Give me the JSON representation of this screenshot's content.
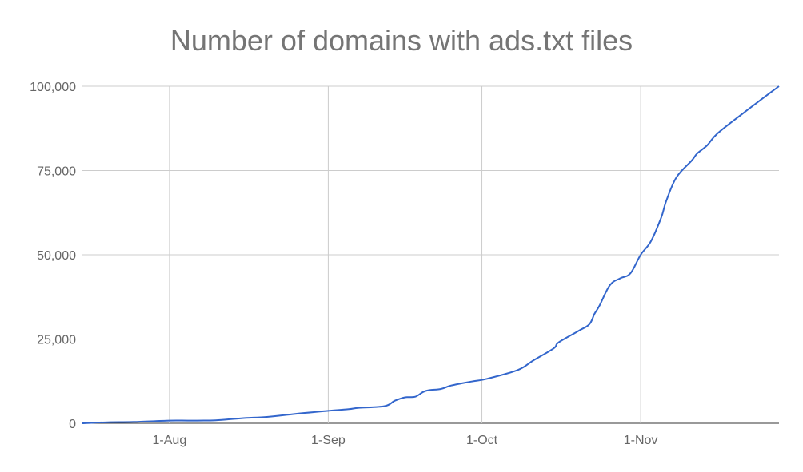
{
  "chart_data": {
    "type": "line",
    "title": "Number of domains with ads.txt files",
    "xlabel": "",
    "ylabel": "",
    "x_range": [
      "2017-07-15",
      "2017-11-28"
    ],
    "ylim": [
      0,
      100000
    ],
    "y_ticks": [
      0,
      25000,
      50000,
      75000,
      100000
    ],
    "y_tick_labels": [
      "0",
      "25,000",
      "50,000",
      "75,000",
      "100,000"
    ],
    "x_ticks": [
      "2017-08-01",
      "2017-09-01",
      "2017-10-01",
      "2017-11-01"
    ],
    "x_tick_labels": [
      "1-Aug",
      "1-Sep",
      "1-Oct",
      "1-Nov"
    ],
    "grid": true,
    "legend": "none",
    "line_color": "#3366cc",
    "series": [
      {
        "x": [
          "2017-07-15",
          "2017-07-20",
          "2017-07-25",
          "2017-08-01",
          "2017-08-05",
          "2017-08-10",
          "2017-08-15",
          "2017-08-20",
          "2017-08-25",
          "2017-08-29",
          "2017-09-01",
          "2017-09-05",
          "2017-09-07",
          "2017-09-12",
          "2017-09-14",
          "2017-09-16",
          "2017-09-18",
          "2017-09-20",
          "2017-09-23",
          "2017-09-25",
          "2017-09-29",
          "2017-10-02",
          "2017-10-08",
          "2017-10-11",
          "2017-10-15",
          "2017-10-16",
          "2017-10-20",
          "2017-10-22",
          "2017-10-23",
          "2017-10-24",
          "2017-10-26",
          "2017-10-28",
          "2017-10-30",
          "2017-11-01",
          "2017-11-03",
          "2017-11-05",
          "2017-11-06",
          "2017-11-08",
          "2017-11-11",
          "2017-11-12",
          "2017-11-14",
          "2017-11-16",
          "2017-11-21",
          "2017-11-28"
        ],
        "y": [
          0,
          300,
          400,
          800,
          800,
          900,
          1500,
          1900,
          2700,
          3300,
          3700,
          4200,
          4600,
          5100,
          6700,
          7700,
          7900,
          9600,
          10200,
          11200,
          12400,
          13200,
          15800,
          18600,
          22200,
          24000,
          27500,
          29400,
          32500,
          35000,
          41000,
          43000,
          44500,
          50000,
          54000,
          61000,
          66000,
          73000,
          78000,
          80000,
          82500,
          86000,
          92000,
          100000
        ]
      }
    ]
  }
}
